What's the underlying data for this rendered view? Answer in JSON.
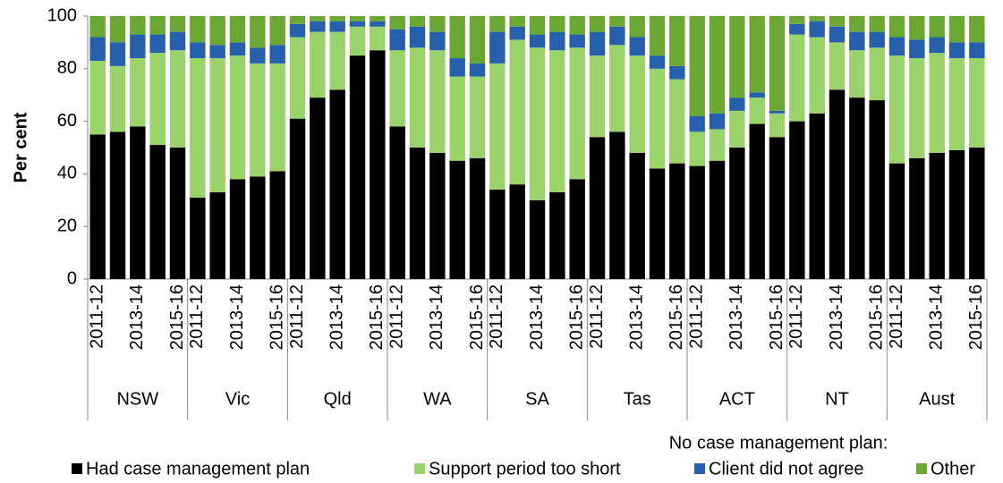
{
  "chart_data": {
    "type": "bar",
    "stacked": true,
    "y_label": "Per cent",
    "groups": [
      "NSW",
      "Vic",
      "Qld",
      "WA",
      "SA",
      "Tas",
      "ACT",
      "NT",
      "Aust"
    ],
    "categories": [
      "2011-12",
      null,
      "2013-14",
      null,
      "2015-16",
      "2011-12",
      null,
      "2013-14",
      null,
      "2015-16",
      "2011-12",
      null,
      "2013-14",
      null,
      "2015-16",
      "2011-12",
      null,
      "2013-14",
      null,
      "2015-16",
      "2011-12",
      null,
      "2013-14",
      null,
      "2015-16",
      "2011-12",
      null,
      "2013-14",
      null,
      "2015-16",
      "2011-12",
      null,
      "2013-14",
      null,
      "2015-16",
      "2011-12",
      null,
      "2013-14",
      null,
      "2015-16",
      "2011-12",
      null,
      "2013-14",
      null,
      "2015-16"
    ],
    "legend_subtitle": "No case management plan:",
    "series": [
      {
        "name": "Had case management plan",
        "color": "#000000",
        "values": [
          55,
          56,
          58,
          51,
          50,
          31,
          33,
          38,
          39,
          41,
          61,
          69,
          72,
          85,
          87,
          58,
          50,
          48,
          45,
          46,
          34,
          36,
          30,
          33,
          38,
          54,
          56,
          48,
          42,
          44,
          43,
          45,
          50,
          59,
          54,
          60,
          63,
          72,
          69,
          68,
          44,
          46,
          48,
          49,
          50
        ]
      },
      {
        "name": "Support period too short",
        "color": "#99d36a",
        "values": [
          28,
          25,
          26,
          35,
          37,
          53,
          51,
          47,
          43,
          41,
          31,
          25,
          22,
          11,
          9,
          29,
          38,
          39,
          32,
          31,
          48,
          55,
          58,
          54,
          50,
          31,
          33,
          37,
          38,
          32,
          13,
          12,
          14,
          10,
          9,
          33,
          29,
          18,
          18,
          20,
          41,
          38,
          38,
          35,
          34
        ]
      },
      {
        "name": "Client did not agree",
        "color": "#2660ad",
        "values": [
          9,
          9,
          9,
          7,
          7,
          6,
          5,
          5,
          6,
          7,
          5,
          4,
          4,
          2,
          2,
          8,
          8,
          7,
          7,
          5,
          12,
          5,
          5,
          7,
          5,
          9,
          7,
          7,
          5,
          5,
          6,
          6,
          5,
          2,
          1,
          4,
          6,
          6,
          7,
          6,
          7,
          7,
          6,
          6,
          6
        ]
      },
      {
        "name": "Other",
        "color": "#6aa733",
        "values": [
          8,
          10,
          7,
          7,
          6,
          10,
          11,
          10,
          12,
          11,
          3,
          2,
          2,
          2,
          2,
          5,
          4,
          6,
          16,
          18,
          6,
          4,
          7,
          6,
          7,
          6,
          4,
          8,
          15,
          19,
          38,
          37,
          31,
          29,
          36,
          3,
          2,
          4,
          6,
          6,
          8,
          9,
          8,
          10,
          10
        ]
      }
    ],
    "ylim": [
      0,
      100
    ],
    "yticks": [
      0,
      20,
      40,
      60,
      80,
      100
    ]
  }
}
